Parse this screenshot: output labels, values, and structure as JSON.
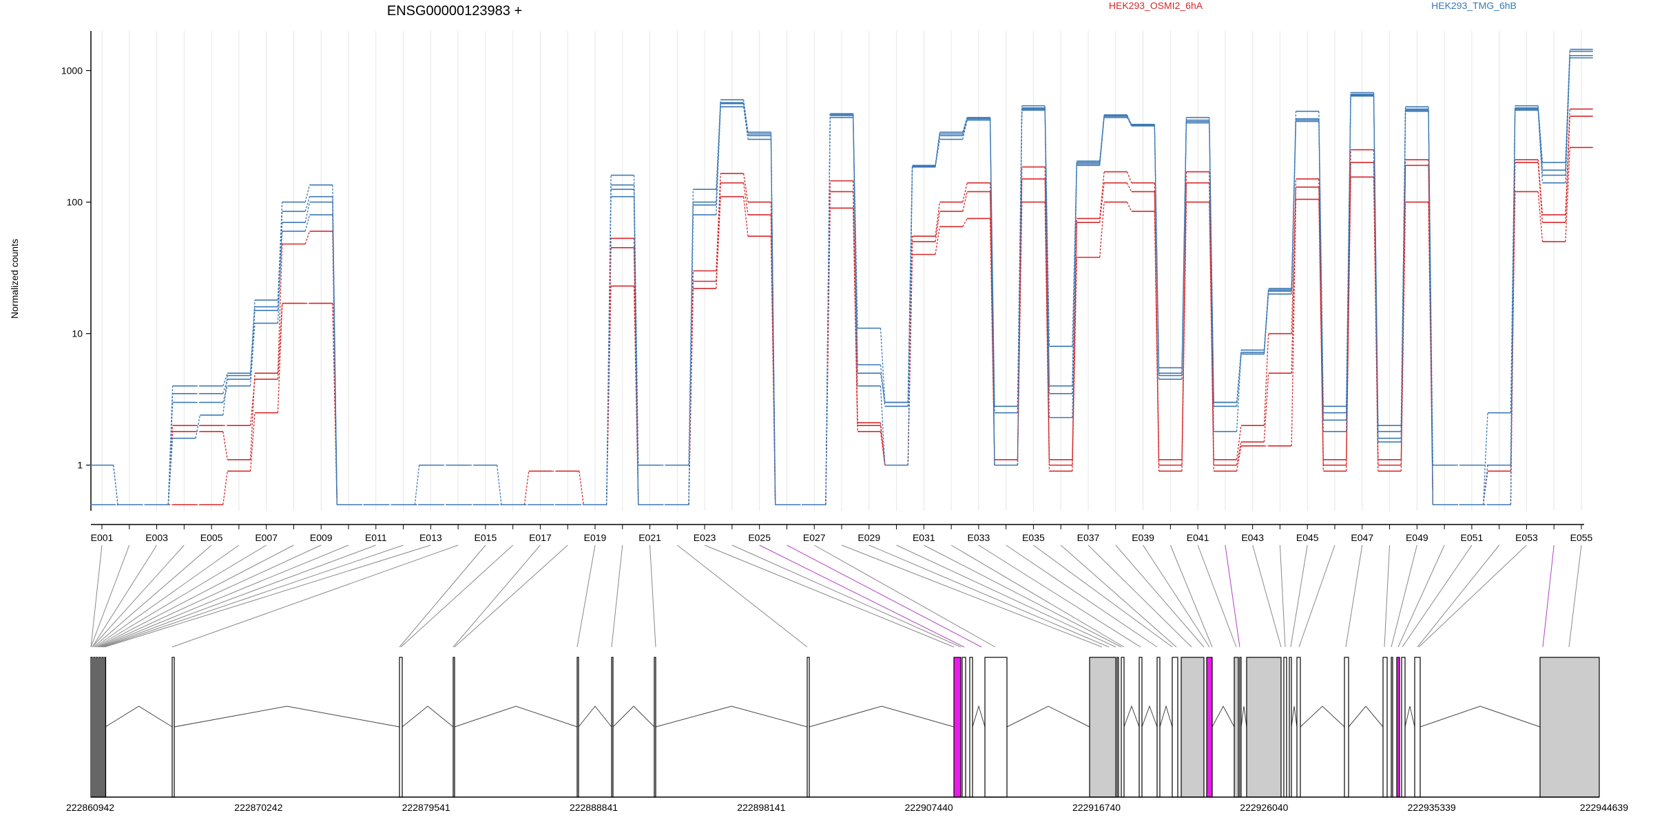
{
  "title": "ENSG00000123983 +",
  "ylabel": "Normalized counts",
  "legend": [
    {
      "name": "HEK293_OSMI2_6hA",
      "color": "#d62728"
    },
    {
      "name": "HEK293_TMG_6hB",
      "color": "#3b78b5"
    }
  ],
  "colors": {
    "red": "#d62728",
    "blue": "#3b78b5",
    "highlight": "#e81ce8",
    "exon_gray": "#cccccc"
  },
  "chart_data": {
    "type": "line",
    "scale": "log",
    "ylim": [
      0.45,
      2000
    ],
    "yticks": [
      1,
      10,
      100,
      1000
    ],
    "ytick_labels": [
      "1",
      "10",
      "100",
      "1000"
    ],
    "exon_ticks": [
      "E001",
      "E003",
      "E005",
      "E007",
      "E009",
      "E011",
      "E013",
      "E015",
      "E017",
      "E019",
      "E021",
      "E023",
      "E025",
      "E027",
      "E029",
      "E031",
      "E033",
      "E035",
      "E037",
      "E039",
      "E041",
      "E043",
      "E045",
      "E047",
      "E049",
      "E051",
      "E053",
      "E055"
    ],
    "exons_count": 55,
    "series": [
      {
        "group": "red",
        "values": [
          0.5,
          0.5,
          0.5,
          2,
          2,
          2,
          4.5,
          17,
          17,
          0.5,
          0.5,
          0.5,
          0.5,
          0.5,
          0.5,
          0.5,
          0.5,
          0.5,
          0.5,
          45,
          0.5,
          0.5,
          25,
          140,
          80,
          0.5,
          0.5,
          120,
          2,
          1,
          50,
          85,
          120,
          1,
          150,
          1,
          70,
          140,
          120,
          1,
          140,
          1,
          1.5,
          5,
          130,
          1,
          200,
          1,
          190,
          0.5,
          0.5,
          0.5,
          200,
          70,
          450
        ]
      },
      {
        "group": "red",
        "values": [
          0.5,
          0.5,
          0.5,
          0.5,
          0.5,
          0.9,
          2.5,
          17,
          17,
          0.5,
          0.5,
          0.5,
          0.5,
          0.5,
          0.5,
          0.5,
          0.9,
          0.9,
          0.5,
          23,
          0.5,
          0.5,
          22,
          110,
          55,
          0.5,
          0.5,
          90,
          1.8,
          1,
          40,
          65,
          75,
          1,
          100,
          0.9,
          38,
          100,
          85,
          0.9,
          100,
          0.9,
          1.4,
          1.4,
          105,
          0.9,
          155,
          0.9,
          100,
          0.5,
          0.5,
          0.9,
          120,
          50,
          260
        ]
      },
      {
        "group": "red",
        "values": [
          0.5,
          0.5,
          0.5,
          1.8,
          1.8,
          1.1,
          5,
          48,
          60,
          0.5,
          0.5,
          0.5,
          0.5,
          0.5,
          0.5,
          0.5,
          0.5,
          0.5,
          0.5,
          53,
          0.5,
          0.5,
          30,
          165,
          100,
          0.5,
          0.5,
          145,
          2.1,
          1,
          55,
          100,
          140,
          1.1,
          185,
          1.1,
          75,
          170,
          140,
          1.1,
          170,
          1.1,
          2,
          10,
          150,
          1.1,
          250,
          1.1,
          210,
          0.5,
          0.5,
          0.5,
          210,
          80,
          510
        ]
      },
      {
        "group": "blue",
        "values": [
          1,
          0.5,
          0.5,
          3,
          3,
          4,
          12,
          60,
          80,
          0.5,
          0.5,
          0.5,
          0.5,
          0.5,
          0.5,
          0.5,
          0.5,
          0.5,
          0.5,
          110,
          0.5,
          0.5,
          80,
          530,
          300,
          0.5,
          0.5,
          440,
          4,
          1,
          185,
          300,
          420,
          2.5,
          500,
          3.5,
          190,
          440,
          380,
          4.5,
          400,
          2.8,
          7,
          20,
          410,
          2.2,
          640,
          1.5,
          490,
          0.5,
          0.5,
          1,
          500,
          140,
          1250
        ]
      },
      {
        "group": "blue",
        "values": [
          1,
          0.5,
          0.5,
          3.5,
          3.5,
          4.5,
          15,
          70,
          100,
          0.5,
          0.5,
          0.5,
          0.5,
          0.5,
          0.5,
          0.5,
          0.5,
          0.5,
          0.5,
          125,
          0.5,
          0.5,
          95,
          570,
          330,
          0.5,
          0.5,
          460,
          5,
          3,
          185,
          330,
          430,
          2.8,
          520,
          4,
          200,
          455,
          390,
          5,
          420,
          3,
          7,
          21,
          430,
          2.5,
          660,
          1.6,
          510,
          1,
          1,
          1,
          520,
          175,
          1400
        ]
      },
      {
        "group": "blue",
        "values": [
          0.5,
          0.5,
          0.5,
          4,
          4,
          5,
          18,
          100,
          135,
          0.5,
          0.5,
          0.5,
          1,
          1,
          1,
          0.5,
          0.5,
          0.5,
          0.5,
          160,
          1,
          1,
          125,
          600,
          340,
          0.5,
          0.5,
          470,
          11,
          3,
          190,
          340,
          440,
          1,
          540,
          8,
          205,
          460,
          380,
          5.5,
          440,
          3,
          7.5,
          22,
          490,
          2.8,
          680,
          2,
          530,
          0.5,
          0.5,
          2.5,
          540,
          200,
          1450
        ]
      },
      {
        "group": "blue",
        "values": [
          0.5,
          0.5,
          0.5,
          1.6,
          2.4,
          4.8,
          16,
          85,
          110,
          0.5,
          0.5,
          0.5,
          0.5,
          0.5,
          0.5,
          0.5,
          0.5,
          0.5,
          0.5,
          135,
          0.5,
          0.5,
          100,
          560,
          320,
          0.5,
          0.5,
          455,
          5.8,
          2.8,
          188,
          320,
          430,
          1,
          510,
          2.3,
          195,
          450,
          385,
          4.8,
          410,
          1.8,
          7.2,
          21.5,
          420,
          1.8,
          650,
          1.8,
          500,
          0.5,
          0.5,
          0.5,
          510,
          160,
          1300
        ]
      }
    ],
    "genomic_axis": {
      "labels": [
        "222860942",
        "222870242",
        "222879541",
        "222888841",
        "222898141",
        "222907440",
        "222916740",
        "222926040",
        "222935339",
        "222944639"
      ]
    }
  }
}
